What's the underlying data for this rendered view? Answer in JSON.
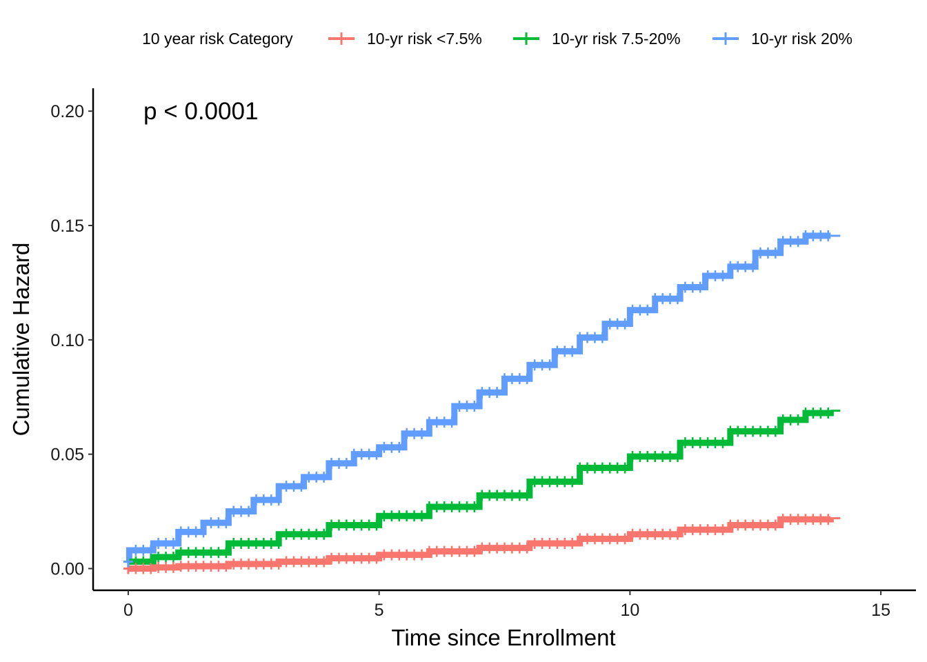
{
  "chart_data": {
    "type": "line",
    "title": "",
    "xlabel": "Time since Enrollment",
    "ylabel": "Cumulative Hazard",
    "xlim": [
      -0.7,
      15.7
    ],
    "ylim": [
      -0.0095,
      0.21
    ],
    "x_ticks": [
      0,
      5,
      10,
      15
    ],
    "x_tick_labels": [
      "0",
      "5",
      "10",
      "15"
    ],
    "y_ticks": [
      0.0,
      0.05,
      0.1,
      0.15,
      0.2
    ],
    "y_tick_labels": [
      "0.00",
      "0.05",
      "0.10",
      "0.15",
      "0.20"
    ],
    "grid": false,
    "legend": {
      "title": "10 year risk Category",
      "position": "top",
      "entries": [
        "10-yr risk <7.5%",
        "10-yr risk 7.5-20%",
        "10-yr risk 20%"
      ]
    },
    "annotation": "p < 0.0001",
    "series": [
      {
        "name": "10-yr risk <7.5%",
        "color": "#F8766D",
        "x": [
          0,
          0.5,
          1,
          2,
          3,
          4,
          5,
          6,
          7,
          8,
          9,
          10,
          11,
          12,
          13,
          14
        ],
        "y": [
          0.0,
          0.0005,
          0.001,
          0.002,
          0.003,
          0.0045,
          0.006,
          0.0075,
          0.009,
          0.011,
          0.013,
          0.015,
          0.017,
          0.019,
          0.0215,
          0.022
        ]
      },
      {
        "name": "10-yr risk 7.5-20%",
        "color": "#00BA38",
        "x": [
          0,
          0.5,
          1,
          2,
          3,
          4,
          5,
          6,
          7,
          8,
          9,
          10,
          11,
          12,
          13,
          13.5,
          14
        ],
        "y": [
          0.003,
          0.005,
          0.007,
          0.011,
          0.015,
          0.019,
          0.023,
          0.027,
          0.032,
          0.038,
          0.044,
          0.049,
          0.055,
          0.06,
          0.065,
          0.068,
          0.069
        ]
      },
      {
        "name": "10-yr risk 20%",
        "color": "#619CFF",
        "x": [
          0,
          0.02,
          0.5,
          1,
          1.5,
          2,
          2.5,
          3,
          3.5,
          4,
          4.5,
          5,
          5.5,
          6,
          6.5,
          7,
          7.5,
          8,
          8.5,
          9,
          9.5,
          10,
          10.5,
          11,
          11.5,
          12,
          12.5,
          13,
          13.5,
          14
        ],
        "y": [
          0.003,
          0.008,
          0.011,
          0.016,
          0.02,
          0.025,
          0.03,
          0.036,
          0.04,
          0.046,
          0.05,
          0.053,
          0.059,
          0.064,
          0.071,
          0.077,
          0.083,
          0.089,
          0.095,
          0.101,
          0.107,
          0.113,
          0.118,
          0.123,
          0.128,
          0.132,
          0.138,
          0.143,
          0.1455,
          0.1455
        ]
      }
    ]
  }
}
